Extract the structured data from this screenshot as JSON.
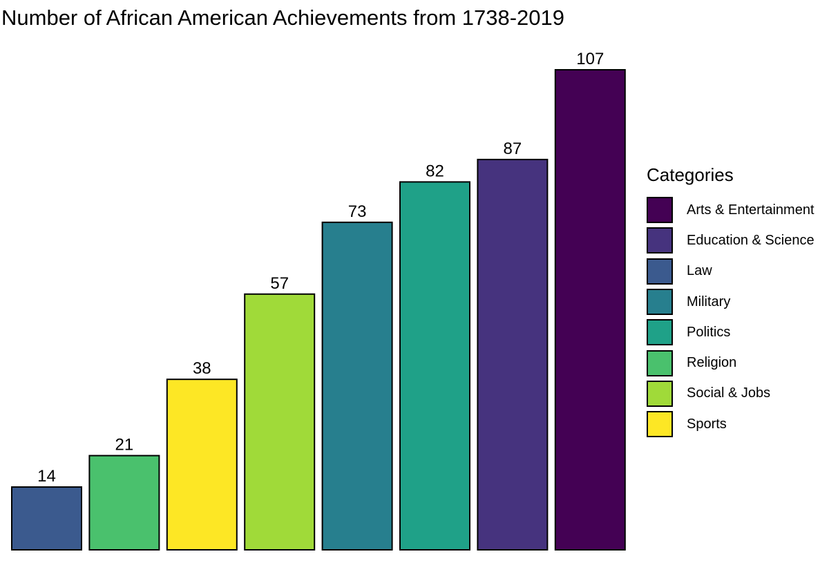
{
  "chart_data": {
    "type": "bar",
    "title": "Number of African American Achievements from 1738-2019",
    "xlabel": "",
    "ylabel": "",
    "ylim": [
      0,
      107
    ],
    "grid": false,
    "legend_title": "Categories",
    "legend_position": "right",
    "bars": [
      {
        "category": "Law",
        "value": 14,
        "color": "#3B5A8E"
      },
      {
        "category": "Religion",
        "value": 21,
        "color": "#4AC16D"
      },
      {
        "category": "Sports",
        "value": 38,
        "color": "#FDE725"
      },
      {
        "category": "Social & Jobs",
        "value": 57,
        "color": "#A0DA39"
      },
      {
        "category": "Military",
        "value": 73,
        "color": "#277F8E"
      },
      {
        "category": "Politics",
        "value": 82,
        "color": "#1FA188"
      },
      {
        "category": "Education & Science",
        "value": 87,
        "color": "#46337E"
      },
      {
        "category": "Arts & Entertainment",
        "value": 107,
        "color": "#440154"
      }
    ],
    "legend": [
      {
        "label": "Arts & Entertainment",
        "color": "#440154"
      },
      {
        "label": "Education & Science",
        "color": "#46337E"
      },
      {
        "label": "Law",
        "color": "#3B5A8E"
      },
      {
        "label": "Military",
        "color": "#277F8E"
      },
      {
        "label": "Politics",
        "color": "#1FA188"
      },
      {
        "label": "Religion",
        "color": "#4AC16D"
      },
      {
        "label": "Social & Jobs",
        "color": "#A0DA39"
      },
      {
        "label": "Sports",
        "color": "#FDE725"
      }
    ]
  }
}
